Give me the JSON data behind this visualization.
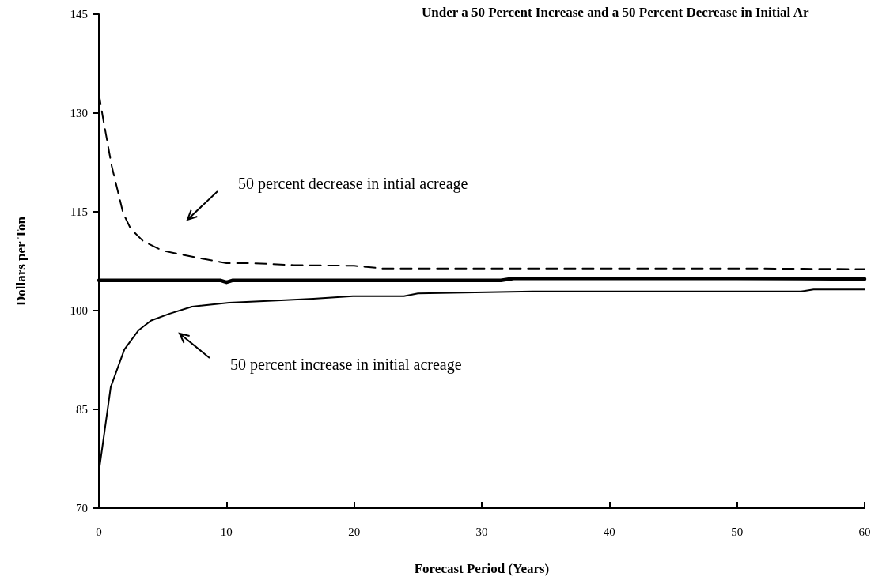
{
  "chart_data": {
    "type": "line",
    "title": "Under a 50 Percent Increase and a 50 Percent Decrease in Initial Ar",
    "xlabel": "Forecast Period (Years)",
    "ylabel": "Dollars per Ton",
    "xlim": [
      0,
      60
    ],
    "xticks": [
      0,
      10,
      20,
      30,
      40,
      50,
      60
    ],
    "ylim": [
      70,
      145
    ],
    "yticks": [
      70,
      85,
      100,
      115,
      130,
      145
    ],
    "grid": false,
    "marker": "none",
    "series": [
      {
        "color": "#000000",
        "line_style": "dashed",
        "x": [
          0,
          0.3,
          1,
          1.9,
          2.5,
          3.5,
          5,
          7,
          10,
          12,
          15.3,
          20,
          22.2,
          30,
          40,
          50,
          60
        ],
        "values": [
          133,
          129.5,
          122,
          114.8,
          112.4,
          110.5,
          109.1,
          108.3,
          107.2,
          107.2,
          106.9,
          106.8,
          106.4,
          106.4,
          106.4,
          106.4,
          106.3
        ]
      },
      {
        "color": "#000000",
        "line_style": "solid",
        "x": [
          0,
          5,
          9.5,
          10,
          10.5,
          15,
          20,
          25,
          31.5,
          32.5,
          40,
          50,
          60
        ],
        "values": [
          104.6,
          104.6,
          104.6,
          104.3,
          104.6,
          104.6,
          104.6,
          104.6,
          104.6,
          104.9,
          104.9,
          104.9,
          104.8
        ]
      },
      {
        "color": "#000000",
        "line_style": "solid",
        "x": [
          0,
          0.93,
          2,
          3.1,
          4.1,
          5.5,
          7.3,
          10.2,
          14.6,
          16.8,
          19.9,
          23.9,
          25,
          34,
          55,
          56,
          60
        ],
        "values": [
          75.5,
          88.4,
          94.1,
          97,
          98.5,
          99.5,
          100.6,
          101.2,
          101.6,
          101.8,
          102.2,
          102.2,
          102.6,
          102.9,
          102.9,
          103.2,
          103.2
        ]
      }
    ],
    "annotations": [
      "50 percent decrease in intial acreage",
      "50 percent increase in initial acreage"
    ]
  }
}
